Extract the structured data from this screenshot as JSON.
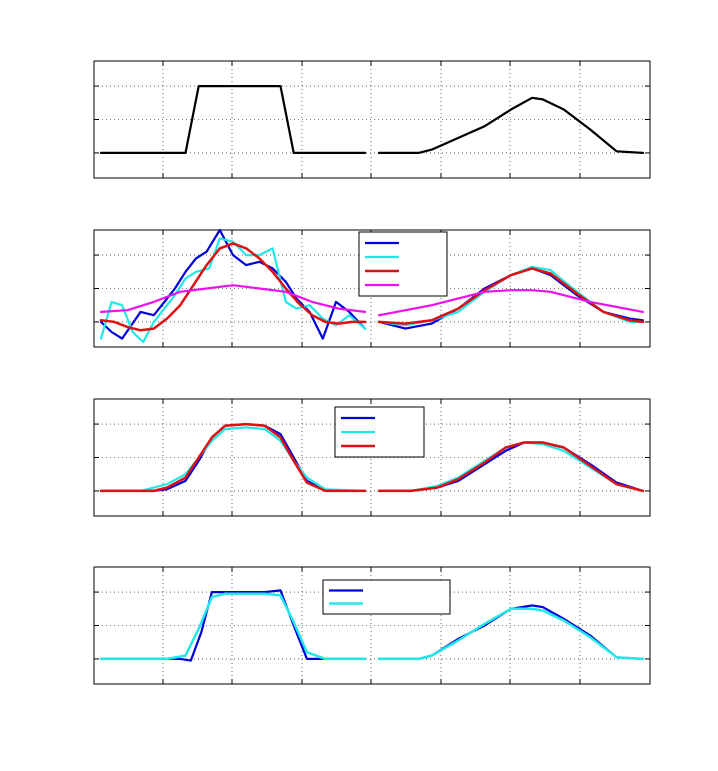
{
  "chart_data": [
    {
      "type": "line",
      "title": "",
      "ylim": [
        -0.75,
        2.75
      ],
      "x_ticks": 8,
      "y_ticks": [
        -0.75,
        0,
        1,
        2
      ],
      "grid": true,
      "segments": [
        {
          "xlim": [
            0,
            1
          ]
        },
        {
          "xlim": [
            1,
            2
          ]
        }
      ],
      "series": [
        {
          "color": "#000000",
          "width": 2.2,
          "segments": [
            {
              "x": [
                0.0,
                0.32,
                0.37,
                0.68,
                0.73,
                1.0
              ],
              "y": [
                0.0,
                0.0,
                2.0,
                2.0,
                0.0,
                0.0
              ]
            },
            {
              "x": [
                1.0,
                1.15,
                1.2,
                1.4,
                1.5,
                1.58,
                1.62,
                1.7,
                1.8,
                1.9,
                2.0
              ],
              "y": [
                0.0,
                0.0,
                0.1,
                0.8,
                1.3,
                1.65,
                1.6,
                1.3,
                0.7,
                0.05,
                0.0
              ]
            }
          ]
        }
      ]
    },
    {
      "type": "line",
      "ylim": [
        -0.75,
        2.75
      ],
      "grid": true,
      "segments": [
        {
          "xlim": [
            0,
            1
          ]
        },
        {
          "xlim": [
            1,
            2
          ]
        }
      ],
      "legend": {
        "position": "top-center",
        "entries": 4
      },
      "series": [
        {
          "color": "#0000dd",
          "width": 2.2,
          "segments": [
            {
              "x": [
                0.0,
                0.04,
                0.08,
                0.15,
                0.2,
                0.24,
                0.28,
                0.32,
                0.36,
                0.4,
                0.45,
                0.5,
                0.55,
                0.6,
                0.65,
                0.7,
                0.74,
                0.79,
                0.84,
                0.89,
                0.94,
                1.0
              ],
              "y": [
                0.0,
                -0.3,
                -0.5,
                0.3,
                0.2,
                0.6,
                1.0,
                1.5,
                1.9,
                2.1,
                2.75,
                2.0,
                1.7,
                1.8,
                1.6,
                1.2,
                0.7,
                0.3,
                -0.5,
                0.6,
                0.3,
                -0.2
              ]
            },
            {
              "x": [
                1.0,
                1.1,
                1.2,
                1.3,
                1.4,
                1.5,
                1.58,
                1.65,
                1.75,
                1.85,
                1.95,
                2.0
              ],
              "y": [
                0.0,
                -0.2,
                -0.05,
                0.4,
                1.0,
                1.4,
                1.6,
                1.4,
                0.8,
                0.3,
                0.1,
                0.05
              ]
            }
          ]
        },
        {
          "color": "#22e8e8",
          "width": 2.2,
          "segments": [
            {
              "x": [
                0.0,
                0.04,
                0.08,
                0.12,
                0.16,
                0.2,
                0.24,
                0.28,
                0.32,
                0.36,
                0.41,
                0.45,
                0.5,
                0.55,
                0.6,
                0.65,
                0.7,
                0.74,
                0.79,
                0.84,
                0.89,
                0.94,
                1.0
              ],
              "y": [
                -0.5,
                0.6,
                0.5,
                -0.3,
                -0.6,
                0.0,
                0.4,
                0.8,
                1.3,
                1.5,
                1.6,
                2.5,
                2.4,
                2.0,
                2.0,
                2.2,
                0.6,
                0.4,
                0.5,
                0.1,
                -0.1,
                0.2,
                -0.2
              ]
            },
            {
              "x": [
                1.0,
                1.1,
                1.2,
                1.3,
                1.4,
                1.5,
                1.58,
                1.65,
                1.75,
                1.85,
                1.95,
                2.0
              ],
              "y": [
                0.0,
                -0.1,
                0.05,
                0.3,
                0.9,
                1.4,
                1.65,
                1.55,
                0.9,
                0.3,
                0.0,
                0.0
              ]
            }
          ]
        },
        {
          "color": "#dd1111",
          "width": 2.5,
          "segments": [
            {
              "x": [
                0.0,
                0.05,
                0.1,
                0.15,
                0.2,
                0.25,
                0.3,
                0.35,
                0.4,
                0.45,
                0.5,
                0.55,
                0.6,
                0.65,
                0.7,
                0.75,
                0.8,
                0.85,
                0.9,
                0.95,
                1.0
              ],
              "y": [
                0.05,
                0.0,
                -0.15,
                -0.25,
                -0.2,
                0.1,
                0.5,
                1.1,
                1.7,
                2.2,
                2.35,
                2.2,
                1.9,
                1.5,
                1.0,
                0.55,
                0.2,
                0.0,
                -0.05,
                0.0,
                0.0
              ]
            },
            {
              "x": [
                1.0,
                1.1,
                1.2,
                1.3,
                1.4,
                1.5,
                1.58,
                1.65,
                1.75,
                1.85,
                1.95,
                2.0
              ],
              "y": [
                0.0,
                -0.05,
                0.05,
                0.4,
                0.95,
                1.4,
                1.6,
                1.45,
                0.85,
                0.3,
                0.05,
                0.0
              ]
            }
          ]
        },
        {
          "color": "#ee11ee",
          "width": 2.2,
          "segments": [
            {
              "x": [
                0.0,
                0.1,
                0.2,
                0.3,
                0.4,
                0.5,
                0.6,
                0.7,
                0.8,
                0.9,
                1.0
              ],
              "y": [
                0.3,
                0.35,
                0.6,
                0.9,
                1.0,
                1.1,
                1.0,
                0.9,
                0.6,
                0.4,
                0.3
              ]
            },
            {
              "x": [
                1.0,
                1.2,
                1.4,
                1.5,
                1.58,
                1.65,
                1.8,
                2.0
              ],
              "y": [
                0.2,
                0.5,
                0.9,
                0.95,
                0.95,
                0.9,
                0.6,
                0.3
              ]
            }
          ]
        }
      ]
    },
    {
      "type": "line",
      "ylim": [
        -0.75,
        2.75
      ],
      "grid": true,
      "segments": [
        {
          "xlim": [
            0,
            1
          ]
        },
        {
          "xlim": [
            1,
            2
          ]
        }
      ],
      "legend": {
        "position": "top-center",
        "entries": 3
      },
      "series": [
        {
          "color": "#0000dd",
          "width": 2.2,
          "segments": [
            {
              "x": [
                0.0,
                0.2,
                0.25,
                0.32,
                0.37,
                0.42,
                0.47,
                0.55,
                0.62,
                0.68,
                0.73,
                0.78,
                0.85,
                1.0
              ],
              "y": [
                0.0,
                0.0,
                0.05,
                0.3,
                0.9,
                1.6,
                1.95,
                2.0,
                1.95,
                1.7,
                1.0,
                0.3,
                0.0,
                0.0
              ]
            },
            {
              "x": [
                1.0,
                1.12,
                1.22,
                1.3,
                1.4,
                1.48,
                1.55,
                1.62,
                1.7,
                1.8,
                1.9,
                2.0
              ],
              "y": [
                0.0,
                0.0,
                0.1,
                0.3,
                0.8,
                1.2,
                1.45,
                1.45,
                1.3,
                0.8,
                0.25,
                0.0
              ]
            }
          ]
        },
        {
          "color": "#22e8e8",
          "width": 2.2,
          "segments": [
            {
              "x": [
                0.0,
                0.15,
                0.25,
                0.32,
                0.37,
                0.42,
                0.47,
                0.55,
                0.62,
                0.68,
                0.73,
                0.78,
                0.85,
                1.0
              ],
              "y": [
                0.0,
                0.0,
                0.2,
                0.5,
                1.0,
                1.5,
                1.85,
                1.9,
                1.85,
                1.5,
                0.9,
                0.4,
                0.05,
                0.0
              ]
            },
            {
              "x": [
                1.0,
                1.12,
                1.22,
                1.3,
                1.4,
                1.48,
                1.55,
                1.62,
                1.7,
                1.8,
                1.9,
                2.0
              ],
              "y": [
                0.0,
                0.0,
                0.15,
                0.4,
                0.9,
                1.3,
                1.45,
                1.4,
                1.2,
                0.7,
                0.2,
                0.0
              ]
            }
          ]
        },
        {
          "color": "#dd1111",
          "width": 2.5,
          "segments": [
            {
              "x": [
                0.0,
                0.2,
                0.25,
                0.32,
                0.37,
                0.42,
                0.47,
                0.55,
                0.62,
                0.68,
                0.73,
                0.78,
                0.85,
                1.0
              ],
              "y": [
                0.0,
                0.0,
                0.1,
                0.4,
                1.0,
                1.6,
                1.95,
                2.0,
                1.95,
                1.6,
                0.9,
                0.25,
                0.0,
                0.0
              ]
            },
            {
              "x": [
                1.0,
                1.12,
                1.22,
                1.3,
                1.4,
                1.48,
                1.55,
                1.62,
                1.7,
                1.8,
                1.9,
                2.0
              ],
              "y": [
                0.0,
                0.0,
                0.1,
                0.35,
                0.85,
                1.3,
                1.45,
                1.45,
                1.3,
                0.75,
                0.2,
                0.0
              ]
            }
          ]
        }
      ]
    },
    {
      "type": "line",
      "ylim": [
        -0.75,
        2.75
      ],
      "grid": true,
      "segments": [
        {
          "xlim": [
            0,
            1
          ]
        },
        {
          "xlim": [
            1,
            2
          ]
        }
      ],
      "legend": {
        "position": "top-center",
        "entries": 2
      },
      "series": [
        {
          "color": "#0000dd",
          "width": 2.2,
          "segments": [
            {
              "x": [
                0.0,
                0.3,
                0.34,
                0.38,
                0.42,
                0.47,
                0.55,
                0.62,
                0.68,
                0.73,
                0.78,
                0.85,
                1.0
              ],
              "y": [
                0.0,
                0.0,
                -0.05,
                0.8,
                2.0,
                2.0,
                2.0,
                2.0,
                2.05,
                1.0,
                0.0,
                0.0,
                0.0
              ]
            },
            {
              "x": [
                1.0,
                1.15,
                1.2,
                1.3,
                1.4,
                1.5,
                1.58,
                1.62,
                1.7,
                1.8,
                1.9,
                2.0
              ],
              "y": [
                0.0,
                0.0,
                0.1,
                0.6,
                1.0,
                1.5,
                1.6,
                1.55,
                1.2,
                0.7,
                0.05,
                0.0
              ]
            }
          ]
        },
        {
          "color": "#22e8e8",
          "width": 2.5,
          "segments": [
            {
              "x": [
                0.0,
                0.25,
                0.32,
                0.37,
                0.42,
                0.47,
                0.55,
                0.62,
                0.68,
                0.73,
                0.78,
                0.85,
                1.0
              ],
              "y": [
                0.0,
                0.0,
                0.1,
                0.9,
                1.85,
                1.95,
                1.95,
                1.95,
                1.9,
                1.1,
                0.2,
                0.0,
                0.0
              ]
            },
            {
              "x": [
                1.0,
                1.15,
                1.2,
                1.3,
                1.4,
                1.5,
                1.58,
                1.62,
                1.7,
                1.8,
                1.9,
                2.0
              ],
              "y": [
                0.0,
                0.0,
                0.1,
                0.55,
                1.05,
                1.5,
                1.5,
                1.45,
                1.15,
                0.65,
                0.05,
                0.0
              ]
            }
          ]
        }
      ]
    }
  ]
}
